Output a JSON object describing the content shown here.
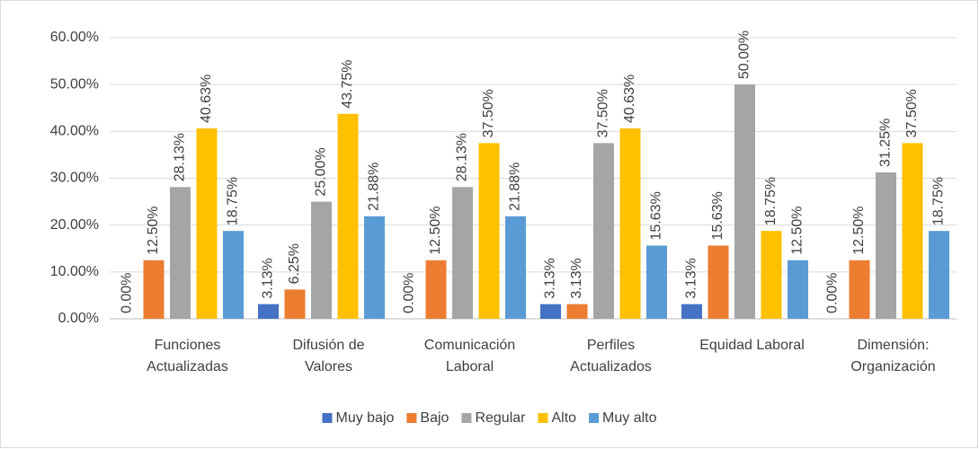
{
  "chart_data": {
    "type": "bar",
    "categories": [
      [
        "Funciones",
        "Actualizadas"
      ],
      [
        "Difusión de",
        "Valores"
      ],
      [
        "Comunicación",
        "Laboral"
      ],
      [
        "Perfiles",
        "Actualizados"
      ],
      [
        "Equidad Laboral"
      ],
      [
        "Dimensión:",
        "Organización"
      ]
    ],
    "series": [
      {
        "name": "Muy bajo",
        "color": "#4472c4",
        "values": [
          0,
          3.13,
          0,
          3.13,
          3.13,
          0
        ],
        "value_labels": [
          "0.00%",
          "3.13%",
          "0.00%",
          "3.13%",
          "3.13%",
          "0.00%"
        ]
      },
      {
        "name": "Bajo",
        "color": "#ed7d31",
        "values": [
          12.5,
          6.25,
          12.5,
          3.13,
          15.63,
          12.5
        ],
        "value_labels": [
          "12.50%",
          "6.25%",
          "12.50%",
          "3.13%",
          "15.63%",
          "12.50%"
        ]
      },
      {
        "name": "Regular",
        "color": "#a5a5a5",
        "values": [
          28.13,
          25,
          28.13,
          37.5,
          50,
          31.25
        ],
        "value_labels": [
          "28.13%",
          "25.00%",
          "28.13%",
          "37.50%",
          "50.00%",
          "31.25%"
        ]
      },
      {
        "name": "Alto",
        "color": "#ffc000",
        "values": [
          40.63,
          43.75,
          37.5,
          40.63,
          18.75,
          37.5
        ],
        "value_labels": [
          "40.63%",
          "43.75%",
          "37.50%",
          "40.63%",
          "18.75%",
          "37.50%"
        ]
      },
      {
        "name": "Muy alto",
        "color": "#5b9bd5",
        "values": [
          18.75,
          21.88,
          21.88,
          15.63,
          12.5,
          18.75
        ],
        "value_labels": [
          "18.75%",
          "21.88%",
          "21.88%",
          "15.63%",
          "12.50%",
          "18.75%"
        ]
      }
    ],
    "ylim": [
      0,
      60
    ],
    "yticks": [
      {
        "value": 0,
        "label": "0.00%"
      },
      {
        "value": 10,
        "label": "10.00%"
      },
      {
        "value": 20,
        "label": "20.00%"
      },
      {
        "value": 30,
        "label": "30.00%"
      },
      {
        "value": 40,
        "label": "40.00%"
      },
      {
        "value": 50,
        "label": "50.00%"
      },
      {
        "value": 60,
        "label": "60.00%"
      }
    ],
    "grid": true,
    "legend": "bottom"
  }
}
